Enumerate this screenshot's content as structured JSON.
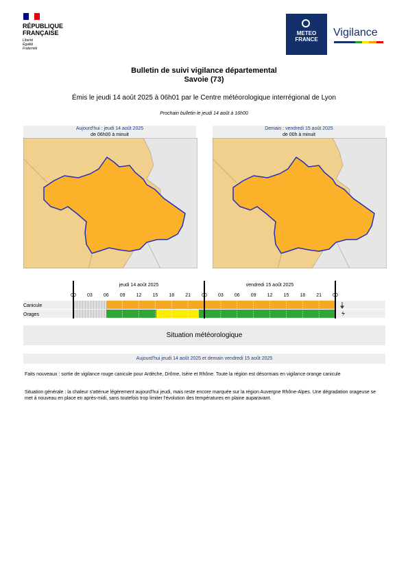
{
  "header": {
    "republic": [
      "RÉPUBLIQUE",
      "FRANÇAISE"
    ],
    "motto": [
      "Liberté",
      "Égalité",
      "Fraternité"
    ],
    "brand": [
      "METEO",
      "FRANCE"
    ],
    "product": "Vigilance"
  },
  "title": "Bulletin de suivi vigilance départemental",
  "subtitle": "Savoie (73)",
  "issued": "Émis le jeudi 14 août 2025 à 06h01 par le Centre météorologique interrégional de Lyon",
  "next": "Prochain bulletin le jeudi 14 août à 16h00",
  "maps": [
    {
      "day": "Aujourd'hui : jeudi 14 août 2025",
      "period": "de 06h00 à minuit"
    },
    {
      "day": "Demain : vendredi 15 août 2025",
      "period": "de 00h à minuit"
    }
  ],
  "timeline": {
    "days": [
      "jeudi 14 août 2025",
      "vendredi 15 août 2025"
    ],
    "hours": [
      "00",
      "03",
      "06",
      "09",
      "12",
      "15",
      "18",
      "21",
      "00",
      "03",
      "06",
      "09",
      "12",
      "15",
      "18",
      "21",
      "00"
    ],
    "rows": [
      "Canicule",
      "Orages"
    ]
  },
  "situation": {
    "title": "Situation météorologique",
    "period": "Aujourd'hui jeudi 14 août 2025 et demain vendredi 15 août 2025",
    "paragraphs": [
      "Faits nouveaux : sortie de vigilance rouge canicule pour Ardèche, Drôme, Isère et Rhône. Toute la région est désormais en vigilance orange canicule",
      "Situation générale : la chaleur s'atténue légèrement aujourd'hui jeudi, mais reste encore marquée sur la région Auvergne Rhône-Alpes. Une dégradation orageuse se met à nouveau en place en après-midi, sans toutefois trop limiter l'évolution des températures en plaine auparavant."
    ]
  }
}
